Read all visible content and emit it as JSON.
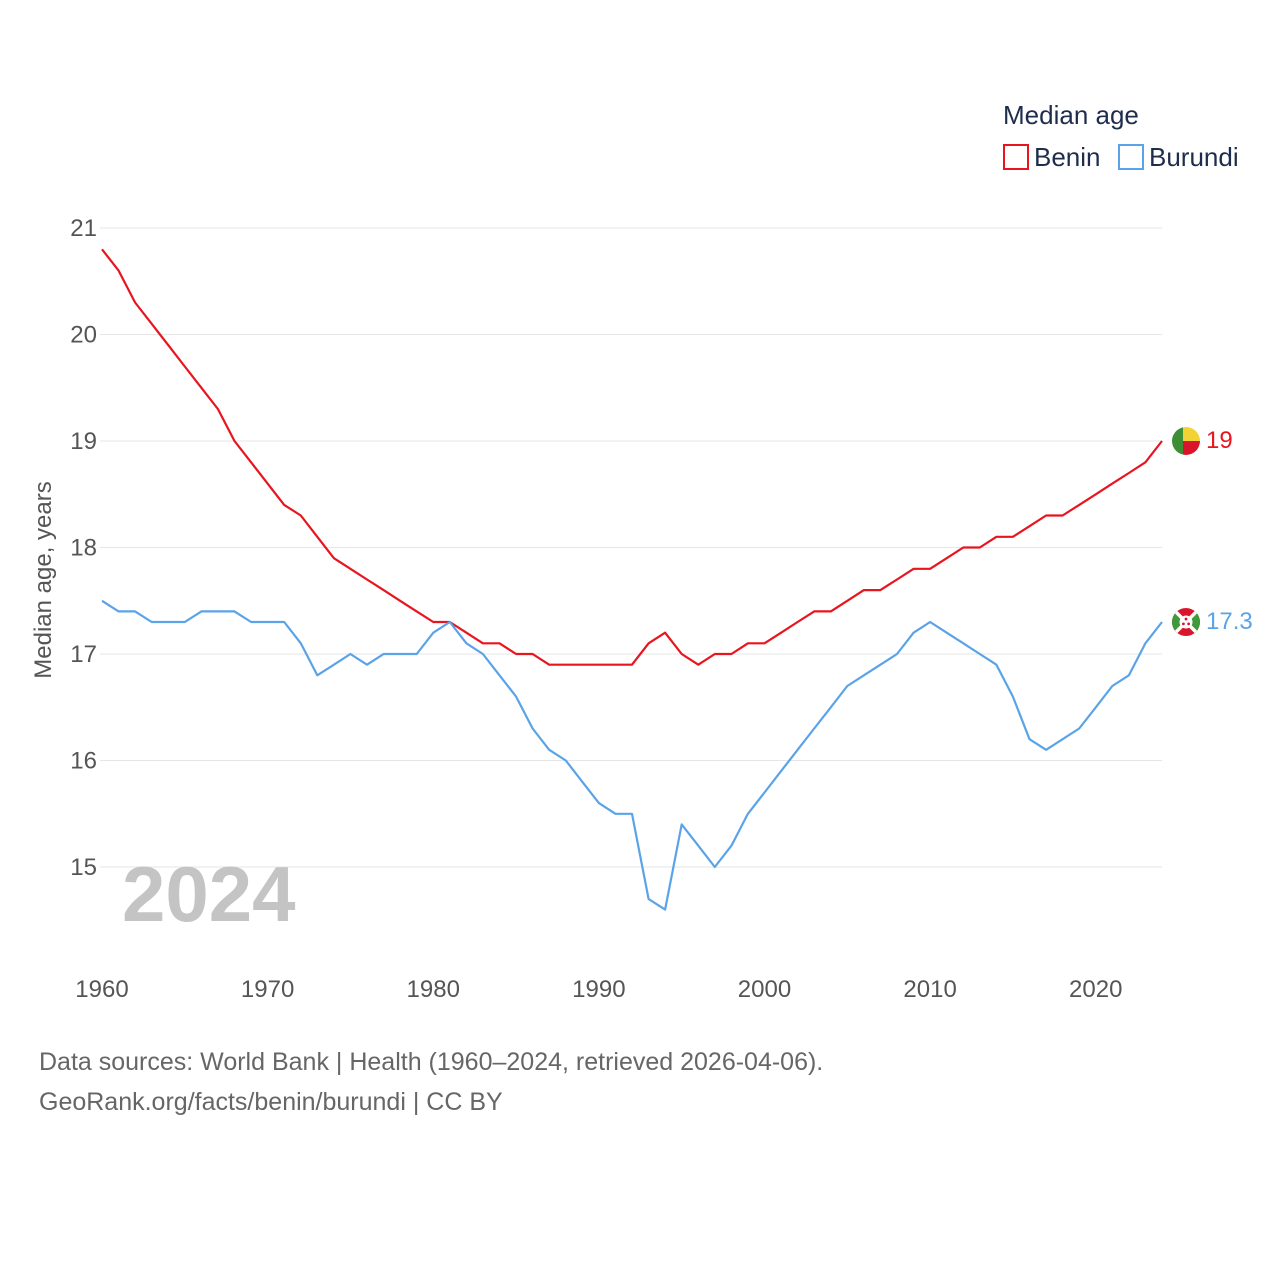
{
  "chart_data": {
    "type": "line",
    "title": "",
    "legend_title": "Median age",
    "legend_position": "top-right",
    "xlabel": "",
    "ylabel": "Median age, years",
    "xlim": [
      1960,
      2024
    ],
    "ylim": [
      14.2,
      21.3
    ],
    "grid": true,
    "x_ticks": [
      1960,
      1970,
      1980,
      1990,
      2000,
      2010,
      2020
    ],
    "y_ticks": [
      15,
      16,
      17,
      18,
      19,
      20,
      21
    ],
    "year_label": "2024",
    "x": [
      1960,
      1961,
      1962,
      1963,
      1964,
      1965,
      1966,
      1967,
      1968,
      1969,
      1970,
      1971,
      1972,
      1973,
      1974,
      1975,
      1976,
      1977,
      1978,
      1979,
      1980,
      1981,
      1982,
      1983,
      1984,
      1985,
      1986,
      1987,
      1988,
      1989,
      1990,
      1991,
      1992,
      1993,
      1994,
      1995,
      1996,
      1997,
      1998,
      1999,
      2000,
      2001,
      2002,
      2003,
      2004,
      2005,
      2006,
      2007,
      2008,
      2009,
      2010,
      2011,
      2012,
      2013,
      2014,
      2015,
      2016,
      2017,
      2018,
      2019,
      2020,
      2021,
      2022,
      2023,
      2024
    ],
    "series": [
      {
        "name": "Benin",
        "color": "#e8141e",
        "end_label": "19",
        "flag_icon": "benin-flag-icon",
        "values": [
          20.8,
          20.6,
          20.3,
          20.1,
          19.9,
          19.7,
          19.5,
          19.3,
          19.0,
          18.8,
          18.6,
          18.4,
          18.3,
          18.1,
          17.9,
          17.8,
          17.7,
          17.6,
          17.5,
          17.4,
          17.3,
          17.3,
          17.2,
          17.1,
          17.1,
          17.0,
          17.0,
          16.9,
          16.9,
          16.9,
          16.9,
          16.9,
          16.9,
          17.1,
          17.2,
          17.0,
          16.9,
          17.0,
          17.0,
          17.1,
          17.1,
          17.2,
          17.3,
          17.4,
          17.4,
          17.5,
          17.6,
          17.6,
          17.7,
          17.8,
          17.8,
          17.9,
          18.0,
          18.0,
          18.1,
          18.1,
          18.2,
          18.3,
          18.3,
          18.4,
          18.5,
          18.6,
          18.7,
          18.8,
          19.0
        ]
      },
      {
        "name": "Burundi",
        "color": "#5aa3e8",
        "end_label": "17.3",
        "flag_icon": "burundi-flag-icon",
        "values": [
          17.5,
          17.4,
          17.4,
          17.3,
          17.3,
          17.3,
          17.4,
          17.4,
          17.4,
          17.3,
          17.3,
          17.3,
          17.1,
          16.8,
          16.9,
          17.0,
          16.9,
          17.0,
          17.0,
          17.0,
          17.2,
          17.3,
          17.1,
          17.0,
          16.8,
          16.6,
          16.3,
          16.1,
          16.0,
          15.8,
          15.6,
          15.5,
          15.5,
          14.7,
          14.6,
          15.4,
          15.2,
          15.0,
          15.2,
          15.5,
          15.7,
          15.9,
          16.1,
          16.3,
          16.5,
          16.7,
          16.8,
          16.9,
          17.0,
          17.2,
          17.3,
          17.2,
          17.1,
          17.0,
          16.9,
          16.6,
          16.2,
          16.1,
          16.2,
          16.3,
          16.5,
          16.7,
          16.8,
          17.1,
          17.3
        ]
      }
    ]
  },
  "footer": {
    "source_line": "Data sources: World Bank | Health (1960–2024, retrieved 2026-04-06).",
    "credit_line": "GeoRank.org/facts/benin/burundi | CC BY"
  }
}
